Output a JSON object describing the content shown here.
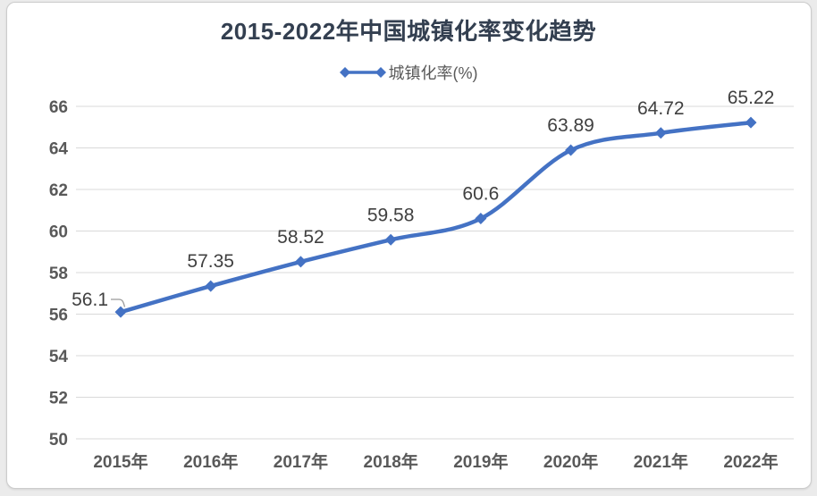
{
  "window": {
    "background_color": "#EBEBEB",
    "card_background_color": "#FFFFFF",
    "card_border_color": "#CCCCCC"
  },
  "chart_data": {
    "type": "line",
    "title": "2015-2022年中国城镇化率变化趋势",
    "categories": [
      "2015年",
      "2016年",
      "2017年",
      "2018年",
      "2019年",
      "2020年",
      "2021年",
      "2022年"
    ],
    "series": [
      {
        "name": "城镇化率(%)",
        "values": [
          56.1,
          57.35,
          58.52,
          59.58,
          60.6,
          63.89,
          64.72,
          65.22
        ],
        "data_labels": [
          "56.1",
          "57.35",
          "58.52",
          "59.58",
          "60.6",
          "63.89",
          "64.72",
          "65.22"
        ]
      }
    ],
    "xlabel": "",
    "ylabel": "",
    "ylim": [
      50,
      66
    ],
    "ytick_step": 2,
    "yticks": [
      "50",
      "52",
      "54",
      "56",
      "58",
      "60",
      "62",
      "64",
      "66"
    ],
    "grid": true,
    "smooth": true,
    "legend_position": "top",
    "markers": "diamond",
    "first_label_callout_index": 0,
    "colors": {
      "line": "#4472C4",
      "grid": "#D9D9D9",
      "axis_text": "#595959",
      "data_label": "#404040",
      "title": "#333F50",
      "legend_text": "#595959",
      "callout": "#9A9A9A"
    }
  }
}
